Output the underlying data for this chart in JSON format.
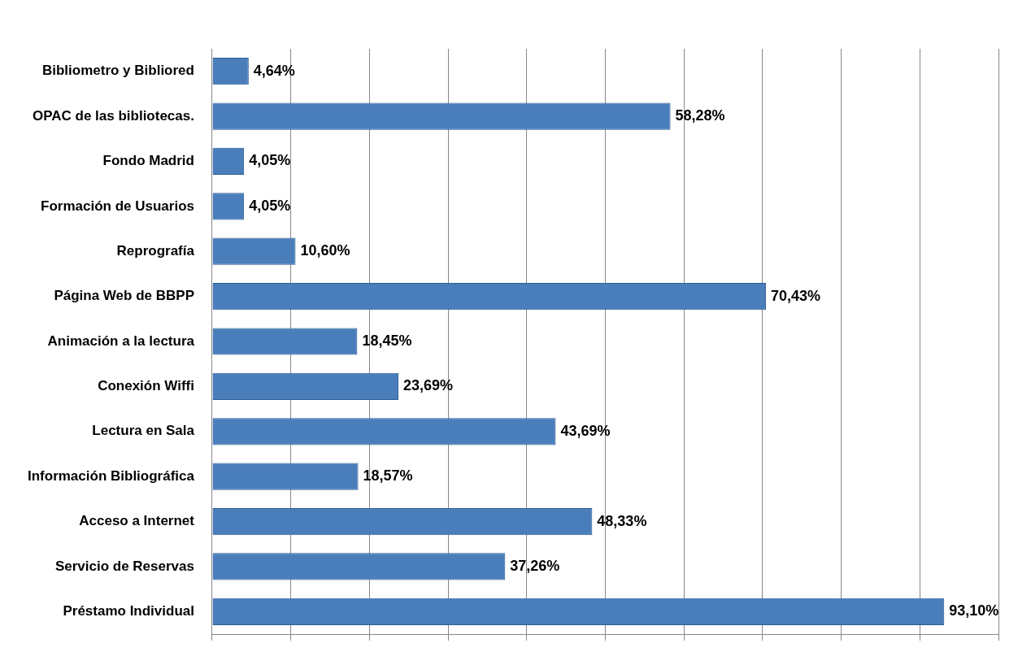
{
  "chart_data": {
    "type": "bar",
    "orientation": "horizontal",
    "categories": [
      "Bibliometro y Bibliored",
      "OPAC de las bibliotecas.",
      "Fondo Madrid",
      "Formación de Usuarios",
      "Reprografía",
      "Página Web de BBPP",
      "Animación a la lectura",
      "Conexión Wiffi",
      "Lectura en Sala",
      "Información Bibliográfica",
      "Acceso a Internet",
      "Servicio de Reservas",
      "Préstamo Individual"
    ],
    "values": [
      4.64,
      58.28,
      4.05,
      4.05,
      10.6,
      70.43,
      18.45,
      23.69,
      43.69,
      18.57,
      48.33,
      37.26,
      93.1
    ],
    "value_labels": [
      "4,64%",
      "58,28%",
      "4,05%",
      "4,05%",
      "10,60%",
      "70,43%",
      "18,45%",
      "23,69%",
      "43,69%",
      "18,57%",
      "48,33%",
      "37,26%",
      "93,10%"
    ],
    "color": "#4a7ebb",
    "xlim": [
      0,
      100
    ],
    "xticks": [
      {
        "value": 0,
        "label": null
      },
      {
        "value": 10,
        "label": null
      },
      {
        "value": 20,
        "label": null
      },
      {
        "value": 30,
        "label": null
      },
      {
        "value": 40,
        "label": null
      },
      {
        "value": 50,
        "label": null
      },
      {
        "value": 60,
        "label": null
      },
      {
        "value": 70,
        "label": null
      },
      {
        "value": 80,
        "label": null
      },
      {
        "value": 90,
        "label": null
      },
      {
        "value": 100,
        "label": null
      }
    ],
    "tick_labels": "y",
    "grid": "x",
    "legend": false
  }
}
